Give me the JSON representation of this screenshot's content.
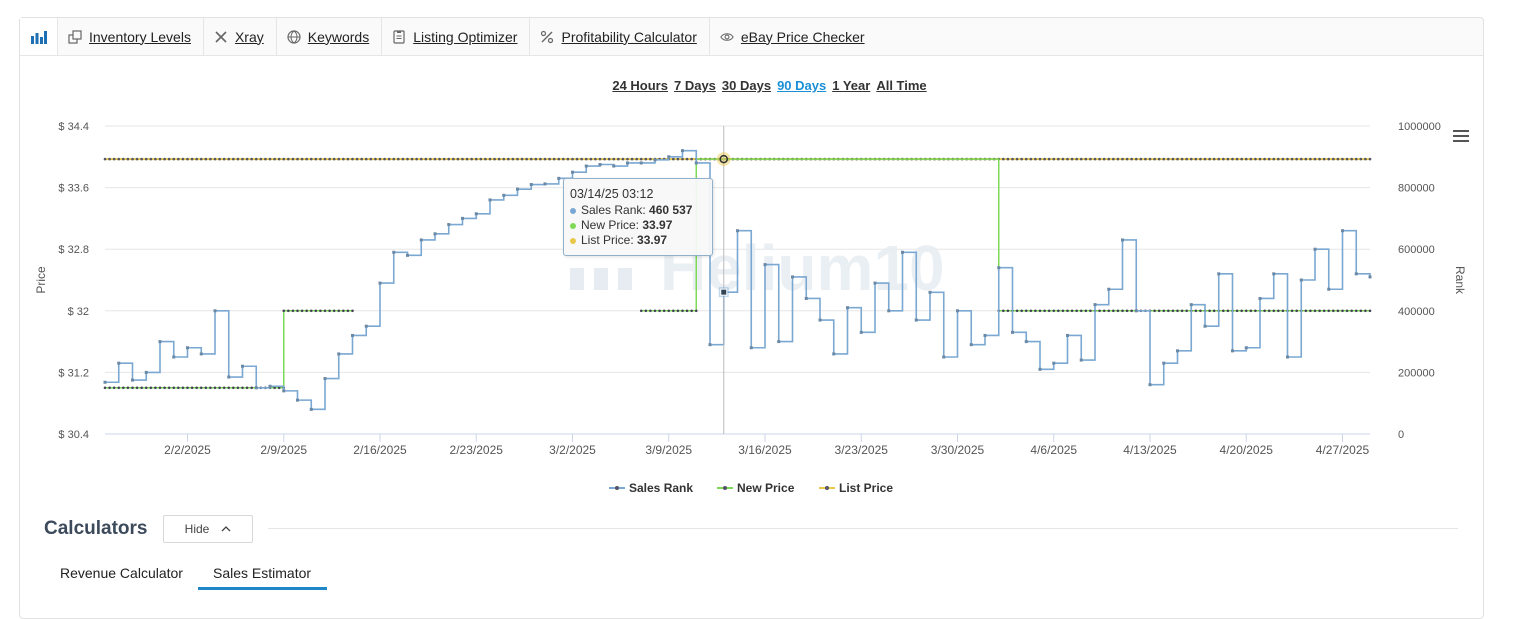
{
  "toolbar": {
    "items": [
      {
        "label": "Inventory Levels",
        "icon": "copy-icon"
      },
      {
        "label": "Xray",
        "icon": "x-icon"
      },
      {
        "label": "Keywords",
        "icon": "globe-icon"
      },
      {
        "label": "Listing Optimizer",
        "icon": "document-icon"
      },
      {
        "label": "Profitability Calculator",
        "icon": "percent-icon"
      },
      {
        "label": "eBay Price Checker",
        "icon": "eye-icon"
      }
    ]
  },
  "ranges": {
    "items": [
      "24 Hours",
      "7 Days",
      "30 Days",
      "90 Days",
      "1 Year",
      "All Time"
    ],
    "active": "90 Days"
  },
  "chart_data": {
    "type": "line",
    "watermark": "Helium10",
    "y_left": {
      "label": "Price",
      "ticks": [
        "$ 34.4",
        "$ 33.6",
        "$ 32.8",
        "$ 32",
        "$ 31.2",
        "$ 30.4"
      ],
      "range": [
        30.4,
        34.4
      ]
    },
    "y_right": {
      "label": "Rank",
      "ticks": [
        "1000000",
        "800000",
        "600000",
        "400000",
        "200000",
        "0"
      ],
      "range": [
        0,
        1000000
      ]
    },
    "x_ticks": [
      "2/2/2025",
      "2/9/2025",
      "2/16/2025",
      "2/23/2025",
      "3/2/2025",
      "3/9/2025",
      "3/16/2025",
      "3/23/2025",
      "3/30/2025",
      "4/6/2025",
      "4/13/2025",
      "4/20/2025",
      "4/27/2025"
    ],
    "x_range": [
      "2025-01-27",
      "2025-04-29"
    ],
    "legend": [
      "Sales Rank",
      "New Price",
      "List Price"
    ],
    "legend_position": "bottom-center",
    "colors": {
      "sales_rank": "#7aa8d2",
      "new_price": "#7ed957",
      "list_price": "#e8c84a",
      "marker": "#555555"
    },
    "series": [
      {
        "name": "List Price",
        "axis": "left",
        "points": [
          [
            "2025-01-27",
            33.97
          ],
          [
            "2025-04-29",
            33.97
          ]
        ]
      },
      {
        "name": "New Price",
        "axis": "left",
        "points": [
          [
            "2025-01-27",
            31.0
          ],
          [
            "2025-02-09",
            31.0
          ],
          [
            "2025-02-09",
            32.0
          ],
          [
            "2025-02-14",
            32.0
          ],
          [
            "2025-03-07",
            32.0
          ],
          [
            "2025-03-11",
            32.0
          ],
          [
            "2025-03-11",
            33.97
          ],
          [
            "2025-04-02",
            33.97
          ],
          [
            "2025-04-02",
            32.0
          ],
          [
            "2025-04-29",
            32.0
          ]
        ]
      },
      {
        "name": "Sales Rank",
        "axis": "right",
        "points": [
          [
            "2025-01-27",
            168000
          ],
          [
            "2025-01-28",
            230000
          ],
          [
            "2025-01-29",
            175000
          ],
          [
            "2025-01-30",
            200000
          ],
          [
            "2025-01-31",
            300000
          ],
          [
            "2025-02-01",
            250000
          ],
          [
            "2025-02-02",
            280000
          ],
          [
            "2025-02-03",
            260000
          ],
          [
            "2025-02-04",
            400000
          ],
          [
            "2025-02-05",
            185000
          ],
          [
            "2025-02-06",
            220000
          ],
          [
            "2025-02-07",
            150000
          ],
          [
            "2025-02-08",
            155000
          ],
          [
            "2025-02-09",
            140000
          ],
          [
            "2025-02-10",
            110000
          ],
          [
            "2025-02-11",
            80000
          ],
          [
            "2025-02-12",
            180000
          ],
          [
            "2025-02-13",
            260000
          ],
          [
            "2025-02-14",
            320000
          ],
          [
            "2025-02-15",
            350000
          ],
          [
            "2025-02-16",
            490000
          ],
          [
            "2025-02-17",
            590000
          ],
          [
            "2025-02-18",
            580000
          ],
          [
            "2025-02-19",
            630000
          ],
          [
            "2025-02-20",
            650000
          ],
          [
            "2025-02-21",
            680000
          ],
          [
            "2025-02-22",
            700000
          ],
          [
            "2025-02-23",
            715000
          ],
          [
            "2025-02-24",
            760000
          ],
          [
            "2025-02-25",
            775000
          ],
          [
            "2025-02-26",
            795000
          ],
          [
            "2025-02-27",
            810000
          ],
          [
            "2025-02-28",
            812000
          ],
          [
            "2025-03-01",
            830000
          ],
          [
            "2025-03-02",
            850000
          ],
          [
            "2025-03-03",
            870000
          ],
          [
            "2025-03-04",
            875000
          ],
          [
            "2025-03-05",
            870000
          ],
          [
            "2025-03-06",
            880000
          ],
          [
            "2025-03-07",
            880000
          ],
          [
            "2025-03-08",
            890000
          ],
          [
            "2025-03-09",
            900000
          ],
          [
            "2025-03-10",
            920000
          ],
          [
            "2025-03-11",
            880000
          ],
          [
            "2025-03-12",
            290000
          ],
          [
            "2025-03-13",
            460537
          ],
          [
            "2025-03-14",
            660000
          ],
          [
            "2025-03-15",
            280000
          ],
          [
            "2025-03-16",
            550000
          ],
          [
            "2025-03-17",
            300000
          ],
          [
            "2025-03-18",
            510000
          ],
          [
            "2025-03-19",
            440000
          ],
          [
            "2025-03-20",
            370000
          ],
          [
            "2025-03-21",
            260000
          ],
          [
            "2025-03-22",
            410000
          ],
          [
            "2025-03-23",
            330000
          ],
          [
            "2025-03-24",
            490000
          ],
          [
            "2025-03-25",
            400000
          ],
          [
            "2025-03-26",
            590000
          ],
          [
            "2025-03-27",
            370000
          ],
          [
            "2025-03-28",
            460000
          ],
          [
            "2025-03-29",
            250000
          ],
          [
            "2025-03-30",
            400000
          ],
          [
            "2025-03-31",
            290000
          ],
          [
            "2025-04-01",
            320000
          ],
          [
            "2025-04-02",
            540000
          ],
          [
            "2025-04-03",
            330000
          ],
          [
            "2025-04-04",
            300000
          ],
          [
            "2025-04-05",
            210000
          ],
          [
            "2025-04-06",
            230000
          ],
          [
            "2025-04-07",
            320000
          ],
          [
            "2025-04-08",
            240000
          ],
          [
            "2025-04-09",
            420000
          ],
          [
            "2025-04-10",
            470000
          ],
          [
            "2025-04-11",
            630000
          ],
          [
            "2025-04-12",
            400000
          ],
          [
            "2025-04-13",
            160000
          ],
          [
            "2025-04-14",
            230000
          ],
          [
            "2025-04-15",
            270000
          ],
          [
            "2025-04-16",
            420000
          ],
          [
            "2025-04-17",
            350000
          ],
          [
            "2025-04-18",
            520000
          ],
          [
            "2025-04-19",
            270000
          ],
          [
            "2025-04-20",
            280000
          ],
          [
            "2025-04-21",
            440000
          ],
          [
            "2025-04-22",
            520000
          ],
          [
            "2025-04-23",
            250000
          ],
          [
            "2025-04-24",
            500000
          ],
          [
            "2025-04-25",
            600000
          ],
          [
            "2025-04-26",
            470000
          ],
          [
            "2025-04-27",
            660000
          ],
          [
            "2025-04-28",
            520000
          ],
          [
            "2025-04-29",
            510000
          ]
        ]
      }
    ],
    "crosshair": "2025-03-13",
    "tooltip": {
      "date": "03/14/25 03:12",
      "rows": [
        {
          "label": "Sales Rank:",
          "value": "460 537",
          "color": "#7aa8d2"
        },
        {
          "label": "New Price:",
          "value": "33.97",
          "color": "#7ed957"
        },
        {
          "label": "List Price:",
          "value": "33.97",
          "color": "#e8c84a"
        }
      ]
    }
  },
  "calculators": {
    "title": "Calculators",
    "hide_label": "Hide",
    "tabs": [
      "Revenue Calculator",
      "Sales Estimator"
    ],
    "active_tab": "Sales Estimator"
  }
}
